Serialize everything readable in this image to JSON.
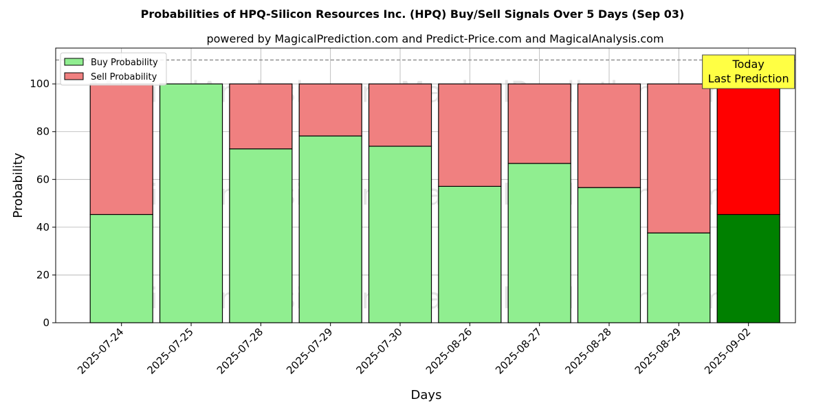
{
  "chart_data": {
    "type": "bar",
    "stacked": true,
    "title": "Probabilities of HPQ-Silicon Resources Inc. (HPQ) Buy/Sell Signals Over 5 Days (Sep 03)",
    "subtitle": "powered by MagicalPrediction.com and Predict-Price.com and MagicalAnalysis.com",
    "xlabel": "Days",
    "ylabel": "Probability",
    "ylim": [
      0,
      115
    ],
    "yticks": [
      0,
      20,
      40,
      60,
      80,
      100
    ],
    "grid": true,
    "legend_position": "top-left",
    "categories": [
      "2025-07-24",
      "2025-07-25",
      "2025-07-28",
      "2025-07-29",
      "2025-07-30",
      "2025-08-26",
      "2025-08-27",
      "2025-08-28",
      "2025-08-29",
      "2025-09-02"
    ],
    "series": [
      {
        "name": "Buy Probability",
        "color": "#90ee90",
        "highlight_color": "#008000",
        "values": [
          45.3,
          100,
          72.8,
          78.2,
          73.9,
          57.1,
          66.7,
          56.6,
          37.6,
          45.3
        ]
      },
      {
        "name": "Sell Probability",
        "color": "#f08080",
        "highlight_color": "#ff0000",
        "values": [
          54.7,
          0,
          27.2,
          21.8,
          26.1,
          42.9,
          33.3,
          43.4,
          62.4,
          54.7
        ]
      }
    ],
    "highlight_index": 9,
    "reference_line": {
      "value": 110,
      "style": "dashed",
      "color": "#808080"
    },
    "annotation": {
      "lines": [
        "Today",
        "Last Prediction"
      ],
      "background": "#ffff44",
      "target_index": 9
    },
    "watermarks": [
      "MagicalAnalysis.com",
      "MagicalPrediction.com"
    ]
  }
}
